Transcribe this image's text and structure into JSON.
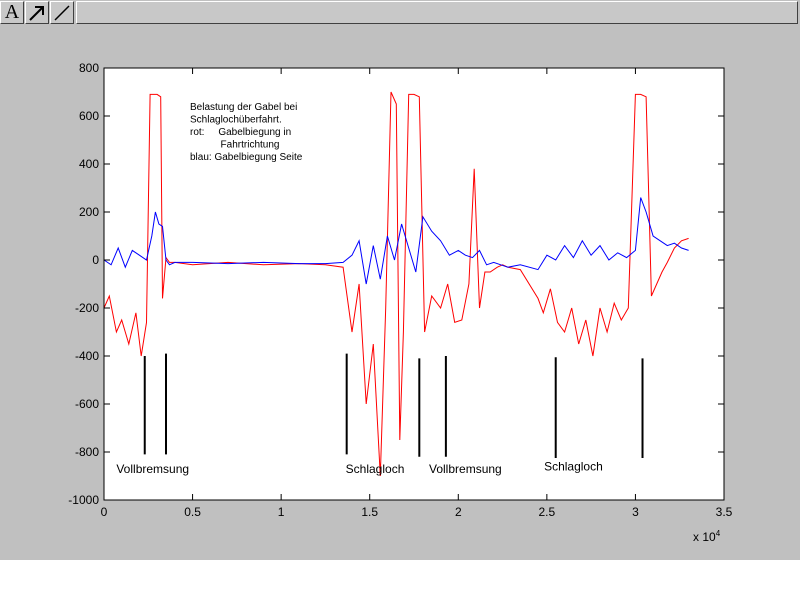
{
  "toolbar": {
    "text_tool_label": "A",
    "buttons": [
      {
        "icon": "text-tool-icon"
      },
      {
        "icon": "arrow-tool-icon"
      },
      {
        "icon": "line-tool-icon"
      }
    ]
  },
  "chart_data": {
    "type": "line",
    "title": "",
    "xlabel": "",
    "ylabel": "",
    "xlim": [
      0,
      35000
    ],
    "ylim": [
      -1000,
      800
    ],
    "x_exponent_label": "x 10",
    "x_exponent_sup": "4",
    "xticks": [
      0,
      5000,
      10000,
      15000,
      20000,
      25000,
      30000,
      35000
    ],
    "xtick_labels": [
      "0",
      "0.5",
      "1",
      "1.5",
      "2",
      "2.5",
      "3",
      "3.5"
    ],
    "yticks": [
      -1000,
      -800,
      -600,
      -400,
      -200,
      0,
      200,
      400,
      600,
      800
    ],
    "ytick_labels": [
      "-1000",
      "-800",
      "-600",
      "-400",
      "-200",
      "0",
      "200",
      "400",
      "600",
      "800"
    ],
    "grid": false,
    "legend_text": [
      "Belastung der Gabel bei",
      "Schlaglochüberfahrt.",
      "rot:     Gabelbiegung in",
      "           Fahrtrichtung",
      "blau: Gabelbiegung Seite"
    ],
    "series": [
      {
        "color": "#ff0000",
        "x": [
          0,
          300,
          700,
          1000,
          1400,
          1800,
          2100,
          2400,
          2600,
          2700,
          3000,
          3200,
          3300,
          3500,
          3700,
          4000,
          5000,
          7000,
          9000,
          11000,
          12500,
          13500,
          14000,
          14400,
          14800,
          15200,
          15600,
          15900,
          16200,
          16500,
          16700,
          16900,
          17200,
          17500,
          17800,
          18100,
          18500,
          19000,
          19400,
          19800,
          20200,
          20600,
          20900,
          21200,
          21500,
          21800,
          22200,
          22500,
          22800,
          23500,
          24500,
          24800,
          25200,
          25600,
          26000,
          26400,
          26800,
          27200,
          27600,
          28000,
          28400,
          28800,
          29200,
          29600,
          30000,
          30300,
          30600,
          30900,
          31200,
          31500,
          31800,
          32200,
          32600,
          33000
        ],
        "y": [
          -200,
          -150,
          -300,
          -250,
          -350,
          -220,
          -400,
          -260,
          690,
          690,
          690,
          680,
          -160,
          10,
          -10,
          -10,
          -20,
          -10,
          -20,
          -15,
          -20,
          -30,
          -300,
          -100,
          -600,
          -350,
          -900,
          -200,
          700,
          650,
          -750,
          -300,
          690,
          690,
          680,
          -300,
          -150,
          -200,
          -100,
          -260,
          -250,
          -100,
          380,
          -200,
          -50,
          -50,
          -30,
          -20,
          -30,
          -40,
          -160,
          -220,
          -120,
          -260,
          -300,
          -200,
          -350,
          -250,
          -400,
          -200,
          -300,
          -180,
          -250,
          -200,
          690,
          690,
          680,
          -150,
          -100,
          -50,
          -10,
          50,
          80,
          90
        ]
      },
      {
        "color": "#0000ff",
        "x": [
          0,
          400,
          800,
          1200,
          1600,
          2000,
          2400,
          2700,
          2900,
          3100,
          3300,
          3500,
          3700,
          4000,
          5000,
          7000,
          9000,
          11000,
          12500,
          13500,
          14000,
          14400,
          14800,
          15200,
          15600,
          16000,
          16400,
          16800,
          17200,
          17600,
          18000,
          18500,
          19000,
          19500,
          20000,
          20400,
          20800,
          21200,
          21600,
          22000,
          22400,
          22800,
          23500,
          24500,
          25000,
          25500,
          26000,
          26500,
          27000,
          27500,
          28000,
          28500,
          29000,
          29500,
          30000,
          30300,
          30600,
          31000,
          31400,
          31800,
          32200,
          32600,
          33000
        ],
        "y": [
          0,
          -20,
          50,
          -30,
          40,
          20,
          0,
          100,
          200,
          150,
          140,
          0,
          -20,
          -10,
          -10,
          -15,
          -10,
          -15,
          -15,
          -10,
          20,
          80,
          -100,
          60,
          -80,
          100,
          0,
          150,
          50,
          -50,
          180,
          120,
          80,
          20,
          40,
          20,
          10,
          40,
          -20,
          -10,
          -20,
          -30,
          -20,
          -40,
          20,
          0,
          60,
          10,
          80,
          20,
          60,
          0,
          30,
          10,
          40,
          260,
          200,
          100,
          80,
          60,
          70,
          50,
          40
        ]
      }
    ],
    "annotations": [
      {
        "text": "Vollbremsung",
        "x": 2750,
        "y": -870,
        "align": "middle"
      },
      {
        "text": "Schlagloch",
        "x": 15300,
        "y": -870,
        "align": "middle"
      },
      {
        "text": "Vollbremsung",
        "x": 20400,
        "y": -870,
        "align": "middle"
      },
      {
        "text": "Schlagloch",
        "x": 26500,
        "y": -860,
        "align": "middle"
      }
    ],
    "markers": [
      {
        "x": 2300,
        "y1": -400,
        "y2": -810
      },
      {
        "x": 3500,
        "y1": -390,
        "y2": -810
      },
      {
        "x": 13700,
        "y1": -390,
        "y2": -810
      },
      {
        "x": 17800,
        "y1": -410,
        "y2": -820
      },
      {
        "x": 19300,
        "y1": -400,
        "y2": -820
      },
      {
        "x": 25500,
        "y1": -405,
        "y2": -825
      },
      {
        "x": 30400,
        "y1": -410,
        "y2": -825
      }
    ]
  }
}
